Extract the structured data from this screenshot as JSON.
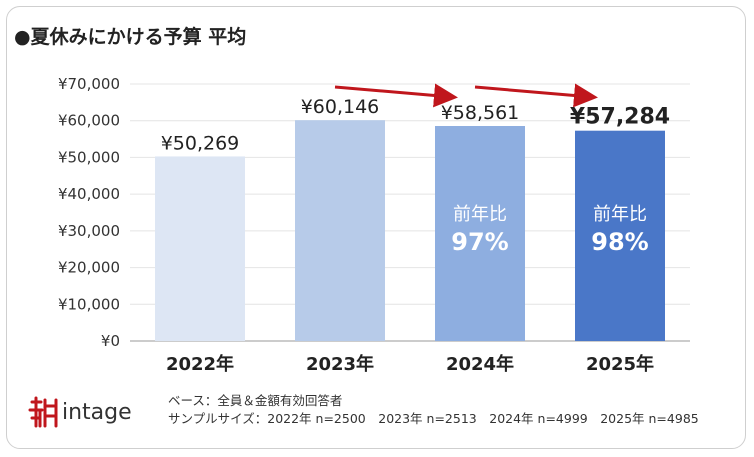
{
  "title": "●夏休みにかける予算 平均",
  "chart_data": {
    "type": "bar",
    "categories": [
      "2022年",
      "2023年",
      "2024年",
      "2025年"
    ],
    "values": [
      50269,
      60146,
      58561,
      57284
    ],
    "value_labels": [
      "¥50,269",
      "¥60,146",
      "¥58,561",
      "¥57,284"
    ],
    "bar_colors": [
      "#dde6f4",
      "#b7cbe9",
      "#8eaee0",
      "#4a77c8"
    ],
    "ylim": [
      0,
      70000
    ],
    "yticks": [
      "¥0",
      "¥10,000",
      "¥20,000",
      "¥30,000",
      "¥40,000",
      "¥50,000",
      "¥60,000",
      "¥70,000"
    ],
    "grid": true,
    "annotations": [
      {
        "category": "2024年",
        "label": "前年比",
        "value": "97%"
      },
      {
        "category": "2025年",
        "label": "前年比",
        "value": "98%"
      }
    ],
    "arrow_color": "#c0161c"
  },
  "footer": {
    "logo_text": "intage",
    "note_line1": "ベース：全員＆金額有効回答者",
    "note_line2": "サンプルサイズ：2022年 n=2500　2023年 n=2513　2024年 n=4999　2025年 n=4985"
  }
}
